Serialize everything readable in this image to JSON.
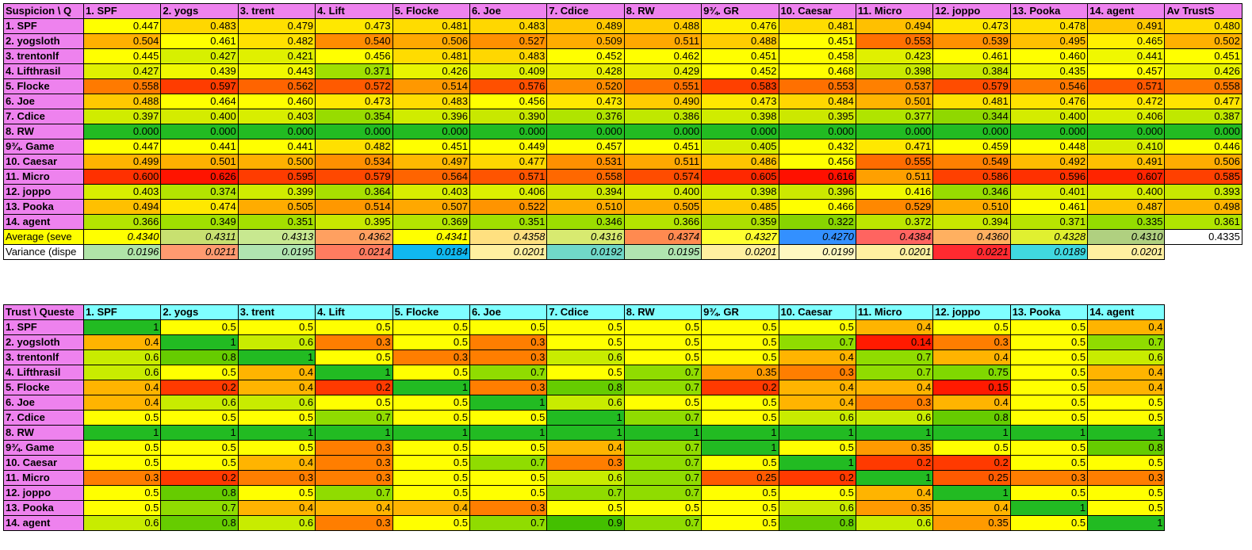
{
  "suspicion_table": {
    "corner": "Suspicion \\ Q",
    "headers": [
      "1. SPF",
      "2. yogs",
      "3. trent",
      "4. Lift",
      "5. Flocke",
      "6. Joe",
      "7. Cdice",
      "8. RW",
      "9¾. GR",
      "10. Caesar",
      "11. Micro",
      "12. joppo",
      "13. Pooka",
      "14. agent",
      "Av TrustS"
    ],
    "header_color": "#ee82ee",
    "rows": [
      {
        "label": "1. SPF",
        "values": [
          "0.447",
          "0.483",
          "0.479",
          "0.473",
          "0.481",
          "0.483",
          "0.489",
          "0.488",
          "0.476",
          "0.481",
          "0.494",
          "0.473",
          "0.478",
          "0.491",
          "0.480"
        ]
      },
      {
        "label": "2. yogsloth",
        "values": [
          "0.504",
          "0.461",
          "0.482",
          "0.540",
          "0.506",
          "0.527",
          "0.509",
          "0.511",
          "0.488",
          "0.451",
          "0.553",
          "0.539",
          "0.495",
          "0.465",
          "0.502"
        ]
      },
      {
        "label": "3. trentonlf",
        "values": [
          "0.445",
          "0.427",
          "0.421",
          "0.456",
          "0.481",
          "0.483",
          "0.452",
          "0.462",
          "0.451",
          "0.458",
          "0.423",
          "0.461",
          "0.460",
          "0.441",
          "0.451"
        ]
      },
      {
        "label": "4. Lifthrasil",
        "values": [
          "0.427",
          "0.439",
          "0.443",
          "0.371",
          "0.426",
          "0.409",
          "0.428",
          "0.429",
          "0.452",
          "0.468",
          "0.398",
          "0.384",
          "0.435",
          "0.457",
          "0.426"
        ]
      },
      {
        "label": "5. Flocke",
        "values": [
          "0.558",
          "0.597",
          "0.562",
          "0.572",
          "0.514",
          "0.576",
          "0.520",
          "0.551",
          "0.583",
          "0.553",
          "0.537",
          "0.579",
          "0.546",
          "0.571",
          "0.558"
        ]
      },
      {
        "label": "6. Joe",
        "values": [
          "0.488",
          "0.464",
          "0.460",
          "0.473",
          "0.483",
          "0.456",
          "0.473",
          "0.490",
          "0.473",
          "0.484",
          "0.501",
          "0.481",
          "0.476",
          "0.472",
          "0.477"
        ]
      },
      {
        "label": "7. Cdice",
        "values": [
          "0.397",
          "0.400",
          "0.403",
          "0.354",
          "0.396",
          "0.390",
          "0.376",
          "0.386",
          "0.398",
          "0.395",
          "0.377",
          "0.344",
          "0.400",
          "0.406",
          "0.387"
        ]
      },
      {
        "label": "8. RW",
        "values": [
          "0.000",
          "0.000",
          "0.000",
          "0.000",
          "0.000",
          "0.000",
          "0.000",
          "0.000",
          "0.000",
          "0.000",
          "0.000",
          "0.000",
          "0.000",
          "0.000",
          "0.000"
        ]
      },
      {
        "label": "9¾. Game",
        "values": [
          "0.447",
          "0.441",
          "0.441",
          "0.482",
          "0.451",
          "0.449",
          "0.457",
          "0.451",
          "0.405",
          "0.432",
          "0.471",
          "0.459",
          "0.448",
          "0.410",
          "0.446"
        ]
      },
      {
        "label": "10. Caesar",
        "values": [
          "0.499",
          "0.501",
          "0.500",
          "0.534",
          "0.497",
          "0.477",
          "0.531",
          "0.511",
          "0.486",
          "0.456",
          "0.555",
          "0.549",
          "0.492",
          "0.491",
          "0.506"
        ]
      },
      {
        "label": "11. Micro",
        "values": [
          "0.600",
          "0.626",
          "0.595",
          "0.579",
          "0.564",
          "0.571",
          "0.558",
          "0.574",
          "0.605",
          "0.616",
          "0.511",
          "0.586",
          "0.596",
          "0.607",
          "0.585"
        ]
      },
      {
        "label": "12. joppo",
        "values": [
          "0.403",
          "0.374",
          "0.399",
          "0.364",
          "0.403",
          "0.406",
          "0.394",
          "0.400",
          "0.398",
          "0.396",
          "0.416",
          "0.346",
          "0.401",
          "0.400",
          "0.393"
        ]
      },
      {
        "label": "13. Pooka",
        "values": [
          "0.494",
          "0.474",
          "0.505",
          "0.514",
          "0.507",
          "0.522",
          "0.510",
          "0.505",
          "0.485",
          "0.466",
          "0.529",
          "0.510",
          "0.461",
          "0.487",
          "0.498"
        ]
      },
      {
        "label": "14. agent",
        "values": [
          "0.366",
          "0.349",
          "0.351",
          "0.395",
          "0.369",
          "0.351",
          "0.346",
          "0.366",
          "0.359",
          "0.322",
          "0.372",
          "0.394",
          "0.371",
          "0.335",
          "0.361"
        ]
      }
    ],
    "row_colors": [
      [
        "#ffff00",
        "#ffd700",
        "#ffe000",
        "#ffe800",
        "#ffdc00",
        "#ffd700",
        "#ffc800",
        "#ffcc00",
        "#fff000",
        "#ffdc00",
        "#ffc000",
        "#ffe800",
        "#ffe000",
        "#ffc800",
        "#ffdc00"
      ],
      [
        "#ffb000",
        "#ffff00",
        "#ffe000",
        "#ff8c00",
        "#ffa800",
        "#ff9000",
        "#ffac00",
        "#ffa800",
        "#ffcc00",
        "#ffff00",
        "#ff7000",
        "#ff9000",
        "#ffc000",
        "#fff000",
        "#ffb000"
      ],
      [
        "#ffff00",
        "#d7f000",
        "#e0f000",
        "#ffff00",
        "#ffdc00",
        "#ffd700",
        "#ffff00",
        "#ffff00",
        "#ffff00",
        "#ffff00",
        "#e0f000",
        "#ffff00",
        "#ffff00",
        "#f0f800",
        "#ffff00"
      ],
      [
        "#e0f000",
        "#f0f800",
        "#f0f800",
        "#a0e000",
        "#e8f400",
        "#e0f000",
        "#e8f000",
        "#e8f000",
        "#ffff00",
        "#ffff00",
        "#c8e800",
        "#c8e800",
        "#f0f800",
        "#ffff00",
        "#e8f400"
      ],
      [
        "#ff7a00",
        "#ff3c00",
        "#ff6400",
        "#ff5a00",
        "#ff9800",
        "#ff5000",
        "#ff8c00",
        "#ff7000",
        "#ff4000",
        "#ff7000",
        "#ff8000",
        "#ff4c00",
        "#ff7800",
        "#ff5800",
        "#ff7800"
      ],
      [
        "#ffc800",
        "#ffff00",
        "#ffff00",
        "#ffe800",
        "#ffdc00",
        "#ffff00",
        "#ffe800",
        "#ffcc00",
        "#ffe800",
        "#ffd700",
        "#ffb400",
        "#ffe000",
        "#ffe400",
        "#ffe800",
        "#ffe400"
      ],
      [
        "#d0ec00",
        "#d4ec00",
        "#d8ee00",
        "#98dc00",
        "#d0ec00",
        "#c8e800",
        "#b0e400",
        "#c0e800",
        "#d0ec00",
        "#cce800",
        "#b0e400",
        "#90d800",
        "#d4ec00",
        "#d8ee00",
        "#c0e800"
      ],
      [
        "#22bb22",
        "#22bb22",
        "#22bb22",
        "#22bb22",
        "#22bb22",
        "#22bb22",
        "#22bb22",
        "#22bb22",
        "#22bb22",
        "#22bb22",
        "#22bb22",
        "#22bb22",
        "#22bb22",
        "#22bb22",
        "#22bb22"
      ],
      [
        "#ffff00",
        "#ffff00",
        "#ffff00",
        "#ffe000",
        "#ffff00",
        "#ffff00",
        "#ffff00",
        "#ffff00",
        "#d8ee00",
        "#ffff00",
        "#ffe800",
        "#ffff00",
        "#ffff00",
        "#d8ee00",
        "#ffff00"
      ],
      [
        "#ffb400",
        "#ffb000",
        "#ffb000",
        "#ff9000",
        "#ffb800",
        "#ffd700",
        "#ff9000",
        "#ffa800",
        "#ffc400",
        "#ffff00",
        "#ff6c00",
        "#ff8000",
        "#ffbc00",
        "#ffc000",
        "#ffac00"
      ],
      [
        "#ff3000",
        "#ff1400",
        "#ff3c00",
        "#ff4800",
        "#ff6400",
        "#ff5400",
        "#ff6800",
        "#ff4c00",
        "#ff2800",
        "#ff1000",
        "#ffa000",
        "#ff4000",
        "#ff3000",
        "#ff2400",
        "#ff4000"
      ],
      [
        "#d8ee00",
        "#b4e400",
        "#d0ec00",
        "#a8e000",
        "#d8ee00",
        "#dcf000",
        "#cce800",
        "#d4ec00",
        "#d0ec00",
        "#cce800",
        "#f0f800",
        "#98dc00",
        "#d8ee00",
        "#d4ec00",
        "#c8e800"
      ],
      [
        "#ffc000",
        "#ffe800",
        "#ffac00",
        "#ff9800",
        "#ffa800",
        "#ff9400",
        "#ffac00",
        "#ffac00",
        "#ffcc00",
        "#ffff00",
        "#ff8800",
        "#ffac00",
        "#ffff00",
        "#ffc400",
        "#ffb400"
      ],
      [
        "#b4e400",
        "#a0e000",
        "#a4e000",
        "#c8e800",
        "#b4e400",
        "#a0e000",
        "#9cde00",
        "#b4e400",
        "#acdf00",
        "#88d400",
        "#bce600",
        "#c8e800",
        "#b8e400",
        "#94dc00",
        "#b0e400"
      ]
    ],
    "average_row": {
      "label": "Average (seve",
      "values": [
        "0.4340",
        "0.4311",
        "0.4313",
        "0.4362",
        "0.4341",
        "0.4358",
        "0.4316",
        "0.4374",
        "0.4327",
        "0.4270",
        "0.4384",
        "0.4360",
        "0.4328",
        "0.4310",
        "0.4335"
      ]
    },
    "average_colors": [
      "#ffff00",
      "#c8e070",
      "#c8e890",
      "#ffa060",
      "#ffff00",
      "#ffe080",
      "#d8ea70",
      "#ff8a50",
      "#ffff30",
      "#3390ff",
      "#ff6460",
      "#ffb060",
      "#e0f030",
      "#b0d080",
      "#ffffff"
    ],
    "variance_row": {
      "label": "Variance (dispe",
      "values": [
        "0.0196",
        "0.0211",
        "0.0195",
        "0.0214",
        "0.0184",
        "0.0201",
        "0.0192",
        "0.0195",
        "0.0201",
        "0.0199",
        "0.0201",
        "0.0221",
        "0.0189",
        "0.0201"
      ]
    },
    "variance_colors": [
      "#b0e4a8",
      "#ff9a70",
      "#b0e4b0",
      "#ff7c60",
      "#10b8f0",
      "#fff0a0",
      "#70d8c8",
      "#b0e4b0",
      "#fff0a0",
      "#fff8c0",
      "#fff0a0",
      "#ff2a30",
      "#40d8e0",
      "#fff0a0"
    ]
  },
  "trust_table": {
    "corner": "Trust \\ Queste",
    "headers": [
      "1. SPF",
      "2. yogs",
      "3. trent",
      "4. Lift",
      "5. Flocke",
      "6. Joe",
      "7. Cdice",
      "8. RW",
      "9¾. GR",
      "10. Caesar",
      "11. Micro",
      "12. joppo",
      "13. Pooka",
      "14. agent"
    ],
    "header_color": "#7fffff",
    "label_color": "#ee82ee",
    "rows": [
      {
        "label": "1. SPF",
        "values": [
          "1",
          "0.5",
          "0.5",
          "0.5",
          "0.5",
          "0.5",
          "0.5",
          "0.5",
          "0.5",
          "0.5",
          "0.4",
          "0.5",
          "0.5",
          "0.4"
        ]
      },
      {
        "label": "2. yogsloth",
        "values": [
          "0.4",
          "1",
          "0.6",
          "0.3",
          "0.5",
          "0.3",
          "0.5",
          "0.5",
          "0.5",
          "0.7",
          "0.14",
          "0.3",
          "0.5",
          "0.7"
        ]
      },
      {
        "label": "3. trentonlf",
        "values": [
          "0.6",
          "0.8",
          "1",
          "0.5",
          "0.3",
          "0.3",
          "0.6",
          "0.5",
          "0.5",
          "0.4",
          "0.7",
          "0.4",
          "0.5",
          "0.6"
        ]
      },
      {
        "label": "4. Lifthrasil",
        "values": [
          "0.6",
          "0.5",
          "0.4",
          "1",
          "0.5",
          "0.7",
          "0.5",
          "0.7",
          "0.35",
          "0.3",
          "0.7",
          "0.75",
          "0.5",
          "0.4"
        ]
      },
      {
        "label": "5. Flocke",
        "values": [
          "0.4",
          "0.2",
          "0.4",
          "0.2",
          "1",
          "0.3",
          "0.8",
          "0.7",
          "0.2",
          "0.4",
          "0.4",
          "0.15",
          "0.5",
          "0.4"
        ]
      },
      {
        "label": "6. Joe",
        "values": [
          "0.4",
          "0.6",
          "0.6",
          "0.5",
          "0.5",
          "1",
          "0.6",
          "0.5",
          "0.5",
          "0.4",
          "0.3",
          "0.4",
          "0.5",
          "0.5"
        ]
      },
      {
        "label": "7. Cdice",
        "values": [
          "0.5",
          "0.5",
          "0.5",
          "0.7",
          "0.5",
          "0.5",
          "1",
          "0.7",
          "0.5",
          "0.6",
          "0.6",
          "0.8",
          "0.5",
          "0.5"
        ]
      },
      {
        "label": "8. RW",
        "values": [
          "1",
          "1",
          "1",
          "1",
          "1",
          "1",
          "1",
          "1",
          "1",
          "1",
          "1",
          "1",
          "1",
          "1"
        ]
      },
      {
        "label": "9¾. Game",
        "values": [
          "0.5",
          "0.5",
          "0.5",
          "0.3",
          "0.5",
          "0.5",
          "0.4",
          "0.7",
          "1",
          "0.5",
          "0.35",
          "0.5",
          "0.5",
          "0.8"
        ]
      },
      {
        "label": "10. Caesar",
        "values": [
          "0.5",
          "0.5",
          "0.4",
          "0.3",
          "0.5",
          "0.7",
          "0.3",
          "0.7",
          "0.5",
          "1",
          "0.2",
          "0.2",
          "0.5",
          "0.5"
        ]
      },
      {
        "label": "11. Micro",
        "values": [
          "0.3",
          "0.2",
          "0.3",
          "0.3",
          "0.5",
          "0.5",
          "0.6",
          "0.7",
          "0.25",
          "0.2",
          "1",
          "0.25",
          "0.3",
          "0.3"
        ]
      },
      {
        "label": "12. joppo",
        "values": [
          "0.5",
          "0.8",
          "0.5",
          "0.7",
          "0.5",
          "0.5",
          "0.7",
          "0.7",
          "0.5",
          "0.5",
          "0.4",
          "1",
          "0.5",
          "0.5"
        ]
      },
      {
        "label": "13. Pooka",
        "values": [
          "0.5",
          "0.7",
          "0.4",
          "0.4",
          "0.4",
          "0.3",
          "0.5",
          "0.5",
          "0.5",
          "0.6",
          "0.35",
          "0.4",
          "1",
          "0.5"
        ]
      },
      {
        "label": "14. agent",
        "values": [
          "0.6",
          "0.8",
          "0.6",
          "0.3",
          "0.5",
          "0.7",
          "0.9",
          "0.7",
          "0.5",
          "0.8",
          "0.6",
          "0.35",
          "0.5",
          "1"
        ]
      }
    ],
    "value_colors": {
      "0.14": "#ff1a00",
      "0.15": "#ff1a00",
      "0.2": "#ff3a00",
      "0.25": "#ff5a00",
      "0.3": "#ff7e00",
      "0.35": "#ff9a00",
      "0.4": "#ffb400",
      "0.5": "#ffff00",
      "0.6": "#c8ec00",
      "0.7": "#90dc00",
      "0.75": "#80d800",
      "0.8": "#66cc00",
      "0.9": "#44c000",
      "1": "#22bb22"
    }
  }
}
